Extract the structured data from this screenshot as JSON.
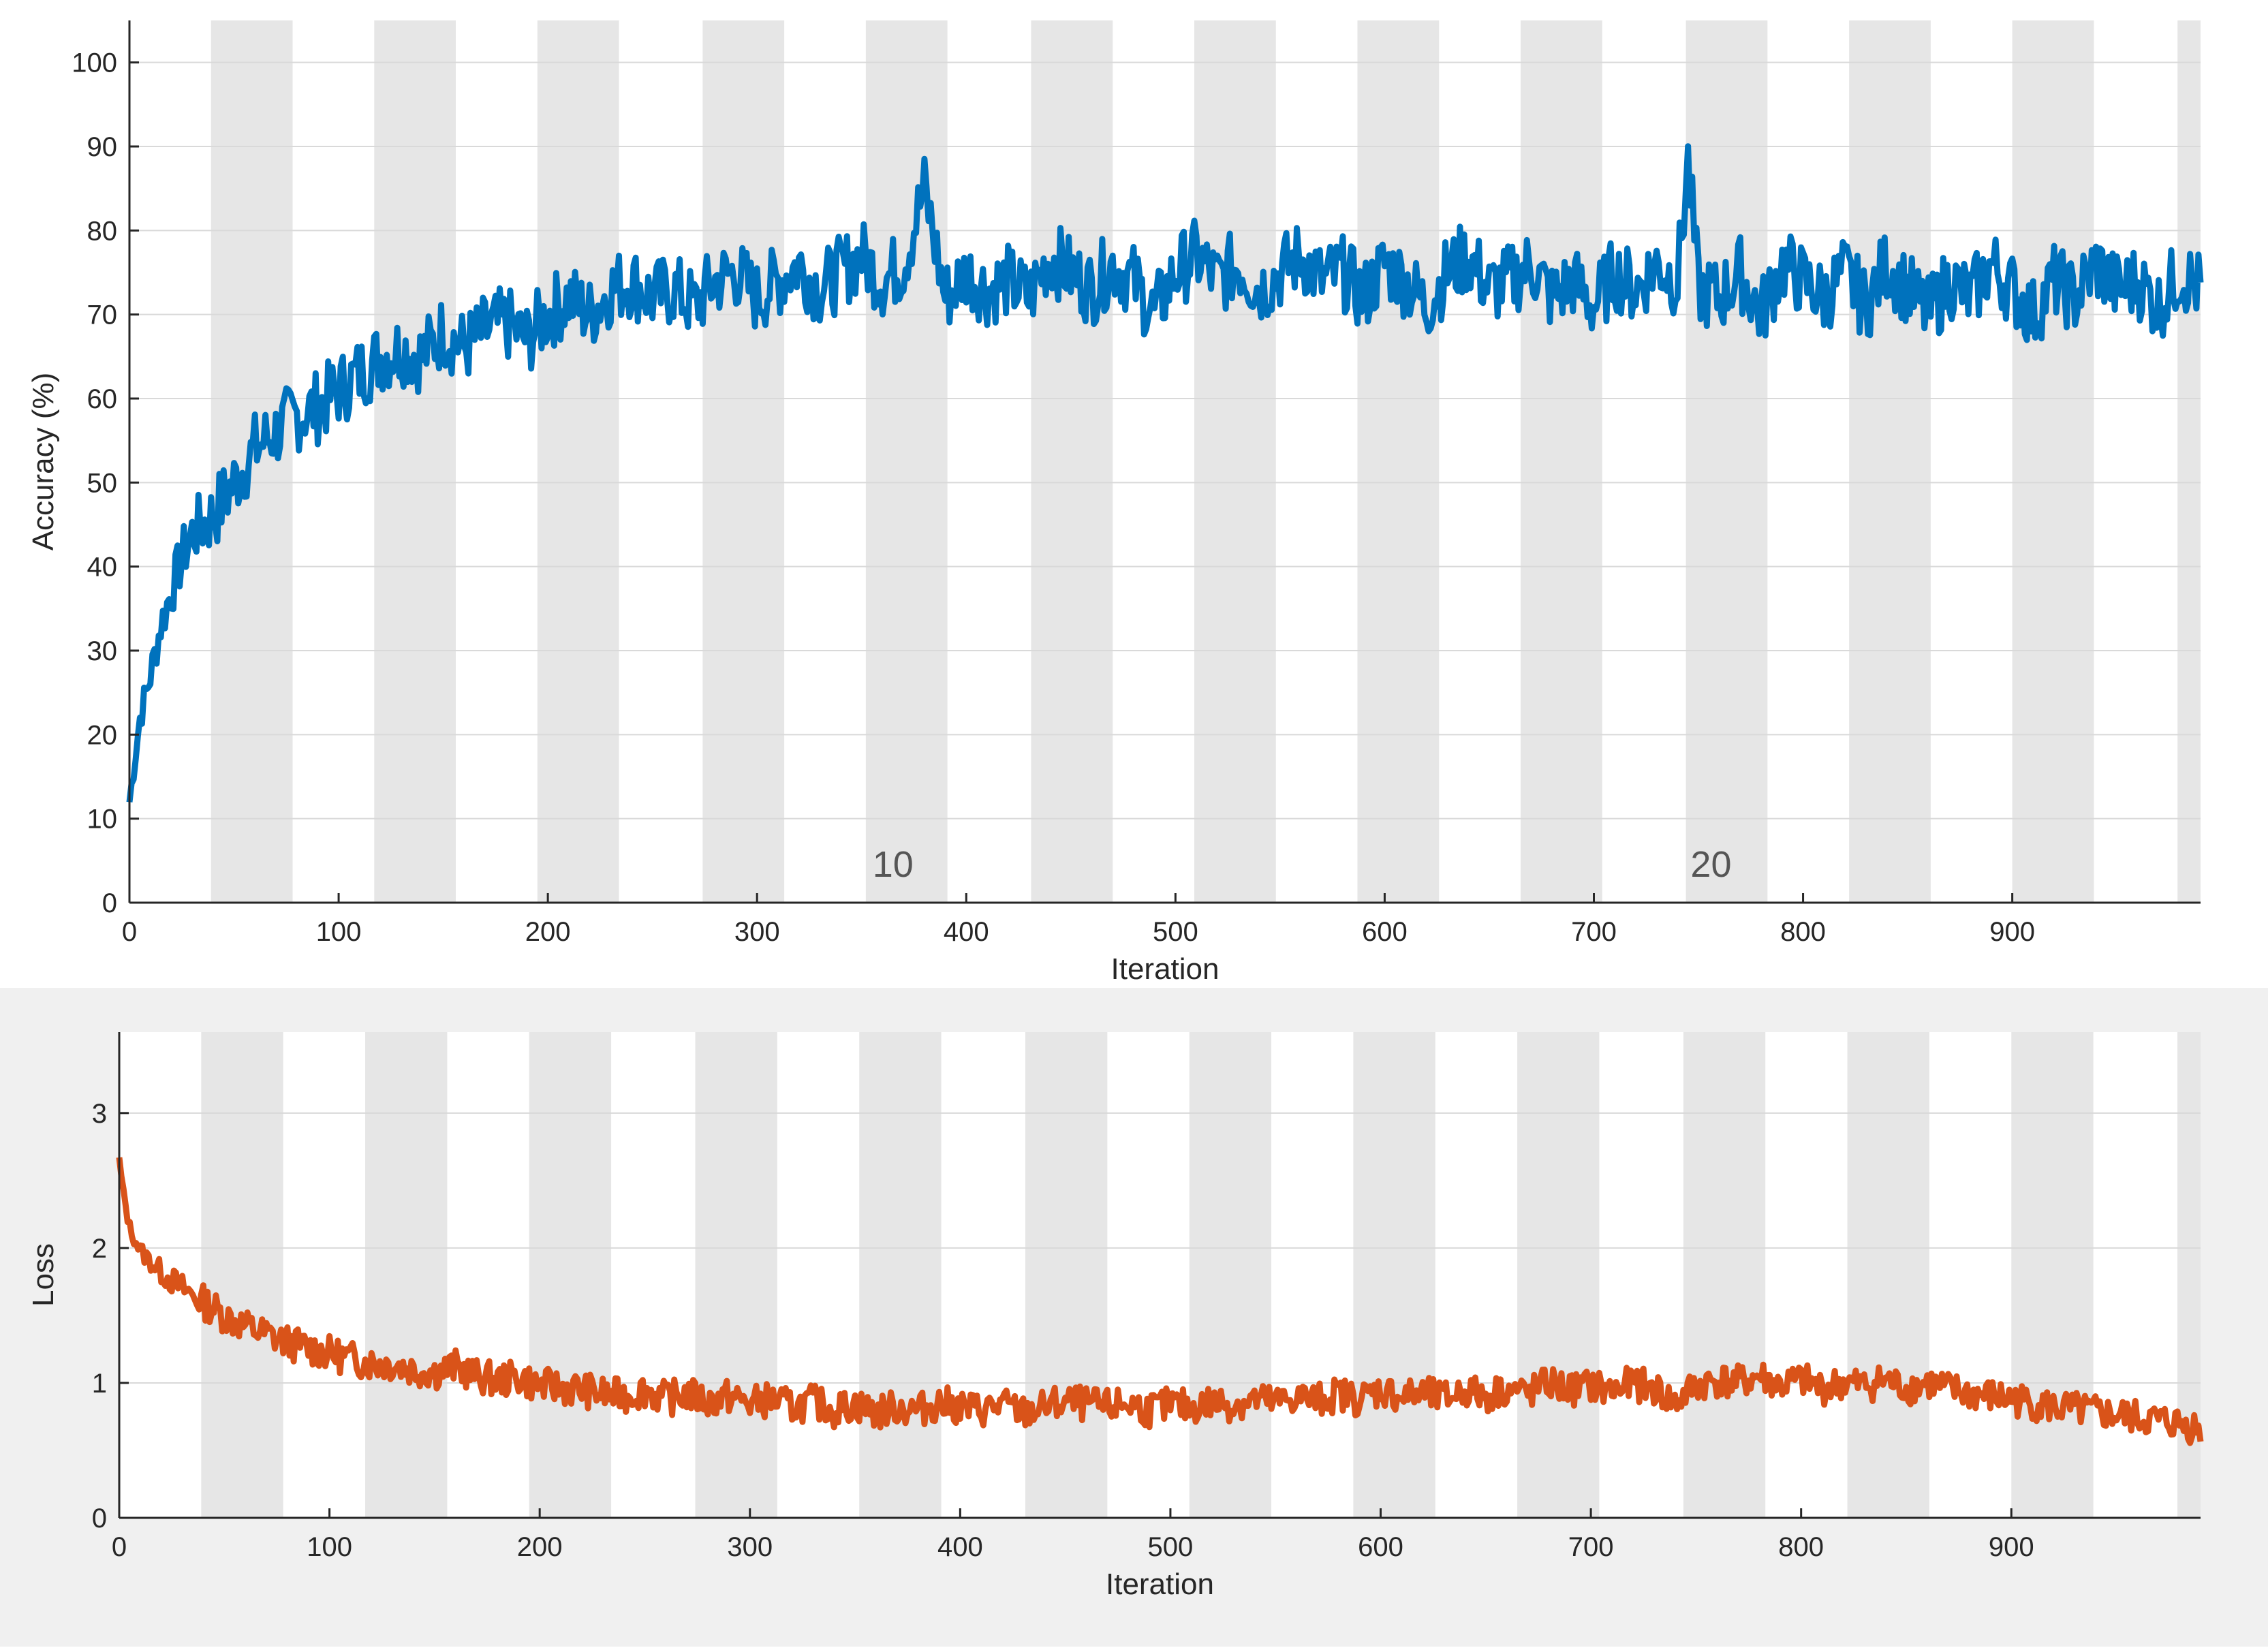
{
  "colors": {
    "accuracy_line": "#0072bd",
    "loss_line": "#d95319",
    "epoch_band": "#e6e6e6",
    "grid": "#d9d9d9",
    "axis": "#262626",
    "background_bottom": "#f0f0f0"
  },
  "chart_data": [
    {
      "type": "line",
      "xlabel": "Iteration",
      "ylabel": "Accuracy (%)",
      "xlim": [
        0,
        990
      ],
      "ylim": [
        0,
        105
      ],
      "xticks": [
        0,
        100,
        200,
        300,
        400,
        500,
        600,
        700,
        800,
        900
      ],
      "xtick_labels": [
        "0",
        "100",
        "200",
        "300",
        "400",
        "500",
        "600",
        "700",
        "800",
        "900"
      ],
      "yticks": [
        0,
        10,
        20,
        30,
        40,
        50,
        60,
        70,
        80,
        90,
        100
      ],
      "ytick_labels": [
        "0",
        "10",
        "20",
        "30",
        "40",
        "50",
        "60",
        "70",
        "80",
        "90",
        "100"
      ],
      "grid": true,
      "epoch_bands": [
        [
          39,
          78
        ],
        [
          117,
          156
        ],
        [
          195,
          234
        ],
        [
          274,
          313
        ],
        [
          352,
          391
        ],
        [
          431,
          470
        ],
        [
          509,
          548
        ],
        [
          587,
          626
        ],
        [
          665,
          704
        ],
        [
          744,
          783
        ],
        [
          822,
          861
        ],
        [
          900,
          939
        ],
        [
          979,
          990
        ]
      ],
      "epoch_labels": [
        {
          "x": 365,
          "text": "10"
        },
        {
          "x": 756,
          "text": "20"
        }
      ],
      "series": [
        {
          "x": [
            0,
            5,
            10,
            15,
            20,
            25,
            30,
            40,
            50,
            60,
            70,
            80,
            90,
            100,
            110,
            120,
            130,
            140,
            150,
            160,
            170,
            180,
            190,
            200,
            210,
            220,
            230,
            240,
            250,
            260,
            270,
            280,
            290,
            300,
            310,
            320,
            330,
            340,
            350,
            360,
            370,
            380,
            390,
            400,
            410,
            420,
            430,
            440,
            450,
            460,
            470,
            480,
            490,
            500,
            510,
            520,
            530,
            540,
            550,
            560,
            570,
            580,
            590,
            600,
            610,
            620,
            630,
            640,
            650,
            660,
            670,
            680,
            690,
            700,
            710,
            720,
            730,
            740,
            745,
            750,
            760,
            770,
            780,
            790,
            800,
            810,
            820,
            830,
            840,
            850,
            860,
            870,
            880,
            890,
            900,
            910,
            920,
            930,
            940,
            950,
            960,
            970,
            980,
            990
          ],
          "values": [
            12,
            22,
            27,
            33,
            37,
            41,
            44,
            46,
            50,
            54,
            56,
            58,
            59,
            61,
            63,
            65,
            66,
            65,
            68,
            66,
            68,
            69,
            67,
            70,
            72,
            70,
            73,
            74,
            72,
            73,
            71,
            74,
            75,
            72,
            74,
            76,
            73,
            75,
            77,
            74,
            76,
            85,
            72,
            75,
            73,
            74,
            72,
            77,
            75,
            73,
            76,
            74,
            70,
            75,
            77,
            74,
            76,
            73,
            75,
            77,
            74,
            75,
            72,
            76,
            74,
            71,
            75,
            77,
            73,
            74,
            76,
            72,
            74,
            71,
            75,
            73,
            76,
            74,
            88,
            73,
            72,
            75,
            70,
            76,
            74,
            72,
            75,
            71,
            76,
            73,
            70,
            74,
            72,
            76,
            73,
            70,
            74,
            72,
            76,
            73,
            74,
            71,
            75,
            73
          ]
        }
      ]
    },
    {
      "type": "line",
      "xlabel": "Iteration",
      "ylabel": "Loss",
      "xlim": [
        0,
        990
      ],
      "ylim": [
        0,
        3.6
      ],
      "xticks": [
        0,
        100,
        200,
        300,
        400,
        500,
        600,
        700,
        800,
        900
      ],
      "xtick_labels": [
        "0",
        "100",
        "200",
        "300",
        "400",
        "500",
        "600",
        "700",
        "800",
        "900"
      ],
      "yticks": [
        0,
        1,
        2,
        3
      ],
      "ytick_labels": [
        "0",
        "1",
        "2",
        "3"
      ],
      "grid": true,
      "epoch_bands": [
        [
          39,
          78
        ],
        [
          117,
          156
        ],
        [
          195,
          234
        ],
        [
          274,
          313
        ],
        [
          352,
          391
        ],
        [
          431,
          470
        ],
        [
          509,
          548
        ],
        [
          587,
          626
        ],
        [
          665,
          704
        ],
        [
          744,
          783
        ],
        [
          822,
          861
        ],
        [
          900,
          939
        ],
        [
          979,
          990
        ]
      ],
      "series": [
        {
          "x": [
            0,
            2,
            5,
            10,
            15,
            20,
            30,
            40,
            50,
            60,
            70,
            80,
            90,
            100,
            110,
            120,
            130,
            140,
            150,
            160,
            170,
            180,
            190,
            200,
            210,
            220,
            230,
            240,
            250,
            260,
            270,
            280,
            290,
            300,
            310,
            320,
            330,
            340,
            350,
            360,
            370,
            380,
            390,
            400,
            410,
            420,
            430,
            440,
            450,
            460,
            470,
            480,
            490,
            500,
            510,
            520,
            530,
            540,
            550,
            560,
            570,
            580,
            590,
            600,
            610,
            620,
            630,
            640,
            650,
            660,
            670,
            680,
            690,
            700,
            710,
            720,
            730,
            740,
            750,
            760,
            770,
            780,
            790,
            800,
            810,
            820,
            830,
            840,
            850,
            860,
            870,
            880,
            890,
            900,
            910,
            920,
            930,
            940,
            950,
            960,
            970,
            980,
            990
          ],
          "values": [
            2.65,
            2.4,
            2.15,
            1.98,
            1.9,
            1.82,
            1.7,
            1.6,
            1.5,
            1.42,
            1.36,
            1.3,
            1.26,
            1.22,
            1.18,
            1.15,
            1.14,
            1.1,
            1.08,
            1.12,
            1.05,
            1.02,
            1.04,
            0.98,
            0.97,
            0.95,
            0.92,
            0.9,
            0.95,
            0.88,
            0.92,
            0.86,
            0.9,
            0.85,
            0.88,
            0.82,
            0.86,
            0.8,
            0.84,
            0.78,
            0.82,
            0.8,
            0.85,
            0.82,
            0.8,
            0.84,
            0.78,
            0.82,
            0.86,
            0.84,
            0.82,
            0.85,
            0.8,
            0.84,
            0.82,
            0.86,
            0.84,
            0.88,
            0.85,
            0.9,
            0.87,
            0.92,
            0.88,
            0.95,
            0.9,
            0.92,
            0.88,
            0.95,
            0.9,
            0.96,
            0.92,
            1.0,
            0.95,
            0.98,
            0.94,
            1.0,
            0.96,
            0.85,
            0.98,
            1.02,
            1.0,
            1.05,
            0.98,
            1.02,
            0.96,
            1.0,
            0.98,
            1.02,
            0.96,
            1.0,
            0.95,
            0.92,
            0.9,
            0.88,
            0.85,
            0.82,
            0.8,
            0.78,
            0.76,
            0.74,
            0.72,
            0.7,
            0.66
          ]
        }
      ]
    }
  ]
}
